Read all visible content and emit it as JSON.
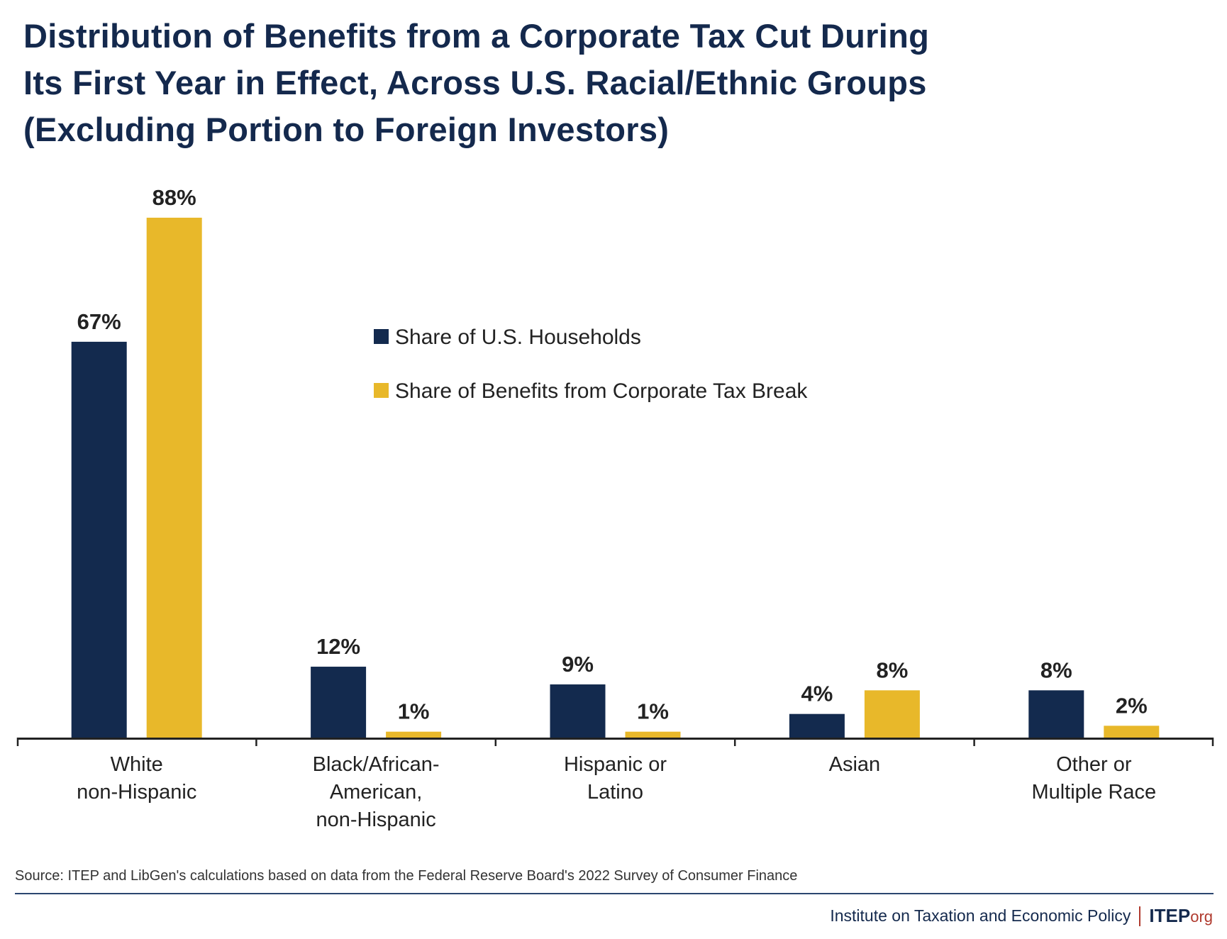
{
  "chart_data": {
    "type": "bar",
    "title": "Distribution of Benefits from a Corporate Tax Cut During Its First Year in Effect, Across U.S. Racial/Ethnic Groups (Excluding Portion to Foreign Investors)",
    "title_lines": [
      "Distribution of Benefits from a Corporate Tax Cut During",
      "Its First Year in Effect, Across U.S. Racial/Ethnic Groups",
      "(Excluding Portion to Foreign Investors)"
    ],
    "categories": [
      [
        "White",
        "non-Hispanic"
      ],
      [
        "Black/African-",
        "American,",
        "non-Hispanic"
      ],
      [
        "Hispanic or",
        "Latino"
      ],
      [
        "Asian"
      ],
      [
        "Other or",
        "Multiple Race"
      ]
    ],
    "series": [
      {
        "name": "Share of U.S. Households",
        "color": "#132a4e",
        "values": [
          67,
          12,
          9,
          4,
          8
        ],
        "labels": [
          "67%",
          "12%",
          "9%",
          "4%",
          "8%"
        ]
      },
      {
        "name": "Share of Benefits from Corporate Tax Break",
        "color": "#e8b82a",
        "values": [
          88,
          1,
          1,
          8,
          2
        ],
        "labels": [
          "88%",
          "1%",
          "1%",
          "8%",
          "2%"
        ]
      }
    ],
    "xlabel": "",
    "ylabel": "",
    "ylim": [
      0,
      100
    ],
    "grid": false,
    "legend_position": "center"
  },
  "source": "Source: ITEP and LibGen's calculations based on data from the Federal Reserve Board's 2022 Survey of Consumer Finance",
  "footer": {
    "org_name": "Institute on Taxation and Economic Policy",
    "logo_main": "ITEP",
    "logo_suffix": "org"
  }
}
